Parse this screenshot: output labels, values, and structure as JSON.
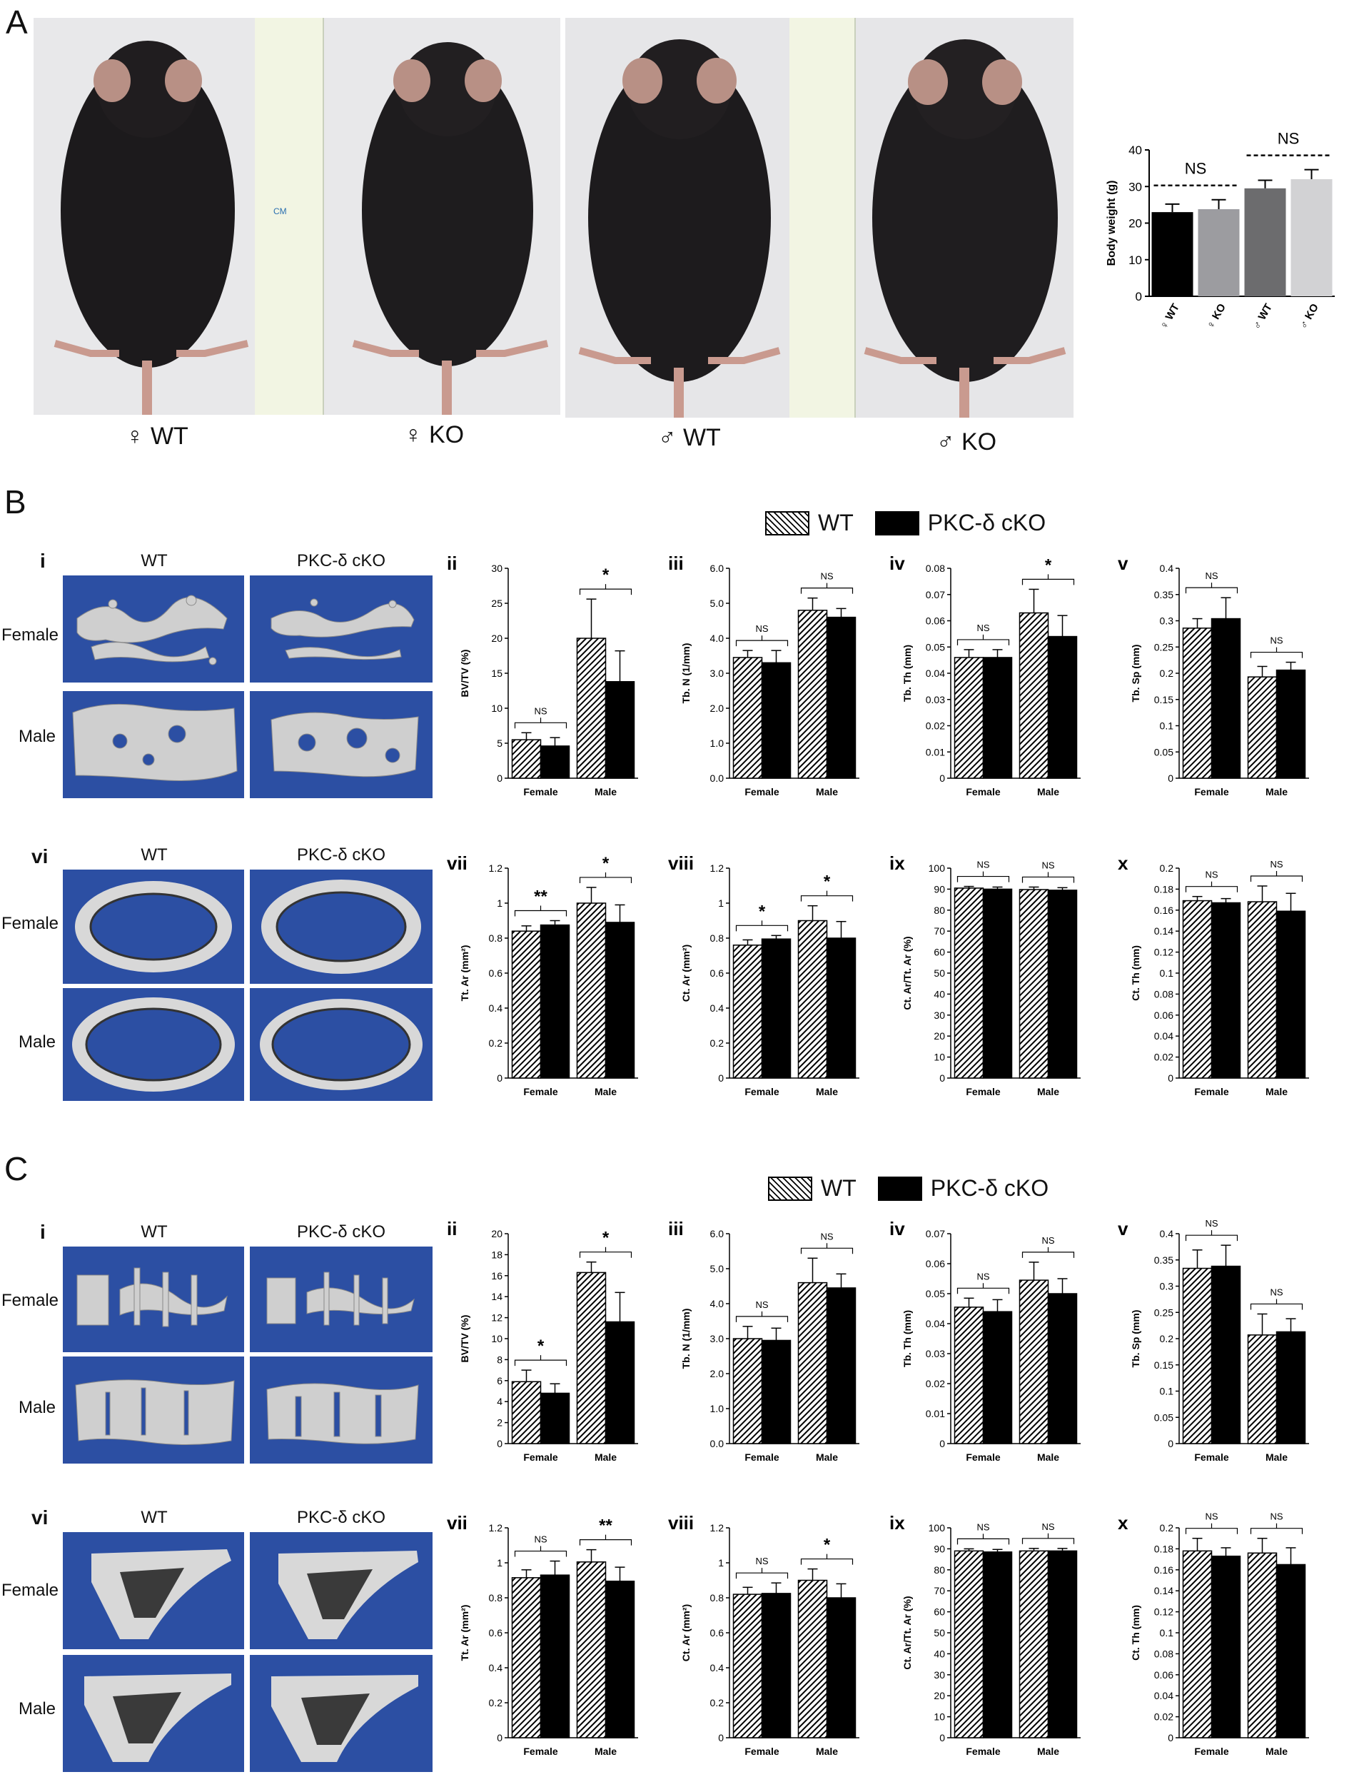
{
  "panel_labels": {
    "a": "A",
    "b": "B",
    "c": "C"
  },
  "panel_a": {
    "photo_captions": [
      "♀ WT",
      "♀ KO",
      "♂ WT",
      "♂ KO"
    ],
    "ruler_text": "CM"
  },
  "legend": {
    "wt": "WT",
    "cko": "PKC-δ cKO"
  },
  "render_headers": {
    "wt": "WT",
    "cko": "PKC-δ cKO"
  },
  "row_labels": {
    "female": "Female",
    "male": "Male"
  },
  "sublabels": {
    "b_i": "i",
    "b_vi": "vi",
    "c_i": "i",
    "c_vi": "vi"
  },
  "colors": {
    "render_bg": "#2c4fa3",
    "bone": "#d9d9d9",
    "bar_black": "#000000"
  },
  "chart_data": [
    {
      "id": "A-bw",
      "type": "bar",
      "panel": "A",
      "ylabel": "Body weight (g)",
      "ylim": [
        0,
        40
      ],
      "yticks": [
        0,
        10,
        20,
        30,
        40
      ],
      "categories": [
        "♀ WT",
        "♀ KO",
        "♂ WT",
        "♂ KO"
      ],
      "values": [
        23,
        23.8,
        29.5,
        32
      ],
      "errors": [
        2.2,
        2.6,
        2.2,
        2.6
      ],
      "colors": [
        "#000000",
        "#9c9ca0",
        "#6c6c6e",
        "#d2d2d4"
      ],
      "annotations": [
        {
          "text": "NS",
          "span": [
            0,
            1
          ]
        },
        {
          "text": "NS",
          "span": [
            2,
            3
          ]
        }
      ]
    },
    {
      "id": "B-ii",
      "type": "bar",
      "roman": "ii",
      "ylabel": "BV/TV (%)",
      "ylim": [
        0,
        30
      ],
      "yticks": [
        "0",
        "5",
        "10",
        "15",
        "20",
        "25",
        "30"
      ],
      "categories": [
        "Female",
        "Male"
      ],
      "series": [
        {
          "name": "WT",
          "values": [
            5.5,
            20
          ]
        },
        {
          "name": "PKC-δ cKO",
          "values": [
            4.6,
            13.8
          ]
        }
      ],
      "errors": [
        [
          1,
          5.6
        ],
        [
          1.2,
          4.4
        ]
      ],
      "annotations": [
        "NS",
        "*"
      ]
    },
    {
      "id": "B-iii",
      "type": "bar",
      "roman": "iii",
      "ylabel": "Tb. N (1/mm)",
      "ylim": [
        0,
        6
      ],
      "yticks": [
        "0.0",
        "1.0",
        "2.0",
        "3.0",
        "4.0",
        "5.0",
        "6.0"
      ],
      "categories": [
        "Female",
        "Male"
      ],
      "series": [
        {
          "name": "WT",
          "values": [
            3.45,
            4.8
          ]
        },
        {
          "name": "PKC-δ cKO",
          "values": [
            3.3,
            4.6
          ]
        }
      ],
      "errors": [
        [
          0.2,
          0.35
        ],
        [
          0.35,
          0.25
        ]
      ],
      "annotations": [
        "NS",
        "NS"
      ]
    },
    {
      "id": "B-iv",
      "type": "bar",
      "roman": "iv",
      "ylabel": "Tb. Th (mm)",
      "ylim": [
        0,
        0.08
      ],
      "yticks": [
        "0",
        "0.01",
        "0.02",
        "0.03",
        "0.04",
        "0.05",
        "0.06",
        "0.07",
        "0.08"
      ],
      "categories": [
        "Female",
        "Male"
      ],
      "series": [
        {
          "name": "WT",
          "values": [
            0.046,
            0.063
          ]
        },
        {
          "name": "PKC-δ cKO",
          "values": [
            0.046,
            0.054
          ]
        }
      ],
      "errors": [
        [
          0.003,
          0.009
        ],
        [
          0.003,
          0.008
        ]
      ],
      "annotations": [
        "NS",
        "*"
      ]
    },
    {
      "id": "B-v",
      "type": "bar",
      "roman": "v",
      "ylabel": "Tb. Sp (mm)",
      "ylim": [
        0,
        0.4
      ],
      "yticks": [
        "0",
        "0.05",
        "0.1",
        "0.15",
        "0.2",
        "0.25",
        "0.3",
        "0.35",
        "0.4"
      ],
      "categories": [
        "Female",
        "Male"
      ],
      "series": [
        {
          "name": "WT",
          "values": [
            0.286,
            0.193
          ]
        },
        {
          "name": "PKC-δ cKO",
          "values": [
            0.304,
            0.206
          ]
        }
      ],
      "errors": [
        [
          0.018,
          0.02
        ],
        [
          0.04,
          0.015
        ]
      ],
      "annotations": [
        "NS",
        "NS"
      ]
    },
    {
      "id": "B-vii",
      "type": "bar",
      "roman": "vii",
      "ylabel": "Tt. Ar (mm²)",
      "ylim": [
        0,
        1.2
      ],
      "yticks": [
        "0",
        "0.2",
        "0.4",
        "0.6",
        "0.8",
        "1",
        "1.2"
      ],
      "categories": [
        "Female",
        "Male"
      ],
      "series": [
        {
          "name": "WT",
          "values": [
            0.84,
            1.0
          ]
        },
        {
          "name": "PKC-δ cKO",
          "values": [
            0.875,
            0.89
          ]
        }
      ],
      "errors": [
        [
          0.03,
          0.09
        ],
        [
          0.025,
          0.1
        ]
      ],
      "annotations": [
        "**",
        "*"
      ]
    },
    {
      "id": "B-viii",
      "type": "bar",
      "roman": "viii",
      "ylabel": "Ct. Ar (mm²)",
      "ylim": [
        0,
        1.2
      ],
      "yticks": [
        "0",
        "0.2",
        "0.4",
        "0.6",
        "0.8",
        "1",
        "1.2"
      ],
      "categories": [
        "Female",
        "Male"
      ],
      "series": [
        {
          "name": "WT",
          "values": [
            0.76,
            0.9
          ]
        },
        {
          "name": "PKC-δ cKO",
          "values": [
            0.795,
            0.8
          ]
        }
      ],
      "errors": [
        [
          0.03,
          0.085
        ],
        [
          0.02,
          0.095
        ]
      ],
      "annotations": [
        "*",
        "*"
      ]
    },
    {
      "id": "B-ix",
      "type": "bar",
      "roman": "ix",
      "ylabel": "Ct. Ar/Tt. Ar (%)",
      "ylim": [
        0,
        100
      ],
      "yticks": [
        "0",
        "10",
        "20",
        "30",
        "40",
        "50",
        "60",
        "70",
        "80",
        "90",
        "100"
      ],
      "categories": [
        "Female",
        "Male"
      ],
      "series": [
        {
          "name": "WT",
          "values": [
            90.5,
            89.8
          ]
        },
        {
          "name": "PKC-δ cKO",
          "values": [
            90,
            89.5
          ]
        }
      ],
      "errors": [
        [
          0.8,
          1.2
        ],
        [
          1,
          1.2
        ]
      ],
      "annotations": [
        "NS",
        "NS"
      ]
    },
    {
      "id": "B-x",
      "type": "bar",
      "roman": "x",
      "ylabel": "Ct. Th (mm)",
      "ylim": [
        0,
        0.2
      ],
      "yticks": [
        "0",
        "0.02",
        "0.04",
        "0.06",
        "0.08",
        "0.1",
        "0.12",
        "0.14",
        "0.16",
        "0.18",
        "0.2"
      ],
      "categories": [
        "Female",
        "Male"
      ],
      "series": [
        {
          "name": "WT",
          "values": [
            0.169,
            0.168
          ]
        },
        {
          "name": "PKC-δ cKO",
          "values": [
            0.167,
            0.159
          ]
        }
      ],
      "errors": [
        [
          0.004,
          0.015
        ],
        [
          0.004,
          0.017
        ]
      ],
      "annotations": [
        "NS",
        "NS"
      ]
    },
    {
      "id": "C-ii",
      "type": "bar",
      "roman": "ii",
      "ylabel": "BV/TV (%)",
      "ylim": [
        0,
        20
      ],
      "yticks": [
        "0",
        "2",
        "4",
        "6",
        "8",
        "10",
        "12",
        "14",
        "16",
        "18",
        "20"
      ],
      "categories": [
        "Female",
        "Male"
      ],
      "series": [
        {
          "name": "WT",
          "values": [
            5.9,
            16.3
          ]
        },
        {
          "name": "PKC-δ cKO",
          "values": [
            4.8,
            11.6
          ]
        }
      ],
      "errors": [
        [
          1.1,
          1
        ],
        [
          0.9,
          2.8
        ]
      ],
      "annotations": [
        "*",
        "*"
      ]
    },
    {
      "id": "C-iii",
      "type": "bar",
      "roman": "iii",
      "ylabel": "Tb. N (1/mm)",
      "ylim": [
        0,
        6
      ],
      "yticks": [
        "0.0",
        "1.0",
        "2.0",
        "3.0",
        "4.0",
        "5.0",
        "6.0"
      ],
      "categories": [
        "Female",
        "Male"
      ],
      "series": [
        {
          "name": "WT",
          "values": [
            3.0,
            4.6
          ]
        },
        {
          "name": "PKC-δ cKO",
          "values": [
            2.95,
            4.45
          ]
        }
      ],
      "errors": [
        [
          0.35,
          0.7
        ],
        [
          0.35,
          0.4
        ]
      ],
      "annotations": [
        "NS",
        "NS"
      ]
    },
    {
      "id": "C-iv",
      "type": "bar",
      "roman": "iv",
      "ylabel": "Tb. Th (mm)",
      "ylim": [
        0,
        0.07
      ],
      "yticks": [
        "0",
        "0.01",
        "0.02",
        "0.03",
        "0.04",
        "0.05",
        "0.06",
        "0.07"
      ],
      "categories": [
        "Female",
        "Male"
      ],
      "series": [
        {
          "name": "WT",
          "values": [
            0.0455,
            0.0545
          ]
        },
        {
          "name": "PKC-δ cKO",
          "values": [
            0.044,
            0.05
          ]
        }
      ],
      "errors": [
        [
          0.003,
          0.006
        ],
        [
          0.004,
          0.005
        ]
      ],
      "annotations": [
        "NS",
        "NS"
      ]
    },
    {
      "id": "C-v",
      "type": "bar",
      "roman": "v",
      "ylabel": "Tb. Sp (mm)",
      "ylim": [
        0,
        0.4
      ],
      "yticks": [
        "0",
        "0.05",
        "0.1",
        "0.15",
        "0.2",
        "0.25",
        "0.3",
        "0.35",
        "0.4"
      ],
      "categories": [
        "Female",
        "Male"
      ],
      "series": [
        {
          "name": "WT",
          "values": [
            0.334,
            0.207
          ]
        },
        {
          "name": "PKC-δ cKO",
          "values": [
            0.338,
            0.213
          ]
        }
      ],
      "errors": [
        [
          0.035,
          0.04
        ],
        [
          0.04,
          0.025
        ]
      ],
      "annotations": [
        "NS",
        "NS"
      ]
    },
    {
      "id": "C-vii",
      "type": "bar",
      "roman": "vii",
      "ylabel": "Tt. Ar (mm²)",
      "ylim": [
        0,
        1.2
      ],
      "yticks": [
        "0",
        "0.2",
        "0.4",
        "0.6",
        "0.8",
        "1",
        "1.2"
      ],
      "categories": [
        "Female",
        "Male"
      ],
      "series": [
        {
          "name": "WT",
          "values": [
            0.915,
            1.005
          ]
        },
        {
          "name": "PKC-δ cKO",
          "values": [
            0.93,
            0.895
          ]
        }
      ],
      "errors": [
        [
          0.045,
          0.07
        ],
        [
          0.08,
          0.08
        ]
      ],
      "annotations": [
        "NS",
        "**"
      ]
    },
    {
      "id": "C-viii",
      "type": "bar",
      "roman": "viii",
      "ylabel": "Ct. Ar (mm²)",
      "ylim": [
        0,
        1.2
      ],
      "yticks": [
        "0",
        "0.2",
        "0.4",
        "0.6",
        "0.8",
        "1",
        "1.2"
      ],
      "categories": [
        "Female",
        "Male"
      ],
      "series": [
        {
          "name": "WT",
          "values": [
            0.82,
            0.9
          ]
        },
        {
          "name": "PKC-δ cKO",
          "values": [
            0.825,
            0.8
          ]
        }
      ],
      "errors": [
        [
          0.04,
          0.065
        ],
        [
          0.06,
          0.08
        ]
      ],
      "annotations": [
        "NS",
        "*"
      ]
    },
    {
      "id": "C-ix",
      "type": "bar",
      "roman": "ix",
      "ylabel": "Ct. Ar/Tt. Ar (%)",
      "ylim": [
        0,
        100
      ],
      "yticks": [
        "0",
        "10",
        "20",
        "30",
        "40",
        "50",
        "60",
        "70",
        "80",
        "90",
        "100"
      ],
      "categories": [
        "Female",
        "Male"
      ],
      "series": [
        {
          "name": "WT",
          "values": [
            89,
            89
          ]
        },
        {
          "name": "PKC-δ cKO",
          "values": [
            88.5,
            89
          ]
        }
      ],
      "errors": [
        [
          1,
          1.2
        ],
        [
          1.2,
          1.2
        ]
      ],
      "annotations": [
        "NS",
        "NS"
      ]
    },
    {
      "id": "C-x",
      "type": "bar",
      "roman": "x",
      "ylabel": "Ct. Th (mm)",
      "ylim": [
        0,
        0.2
      ],
      "yticks": [
        "0",
        "0.02",
        "0.04",
        "0.06",
        "0.08",
        "0.1",
        "0.12",
        "0.14",
        "0.16",
        "0.18",
        "0.2"
      ],
      "categories": [
        "Female",
        "Male"
      ],
      "series": [
        {
          "name": "WT",
          "values": [
            0.178,
            0.176
          ]
        },
        {
          "name": "PKC-δ cKO",
          "values": [
            0.173,
            0.165
          ]
        }
      ],
      "errors": [
        [
          0.012,
          0.014
        ],
        [
          0.008,
          0.016
        ]
      ],
      "annotations": [
        "NS",
        "NS"
      ]
    }
  ]
}
